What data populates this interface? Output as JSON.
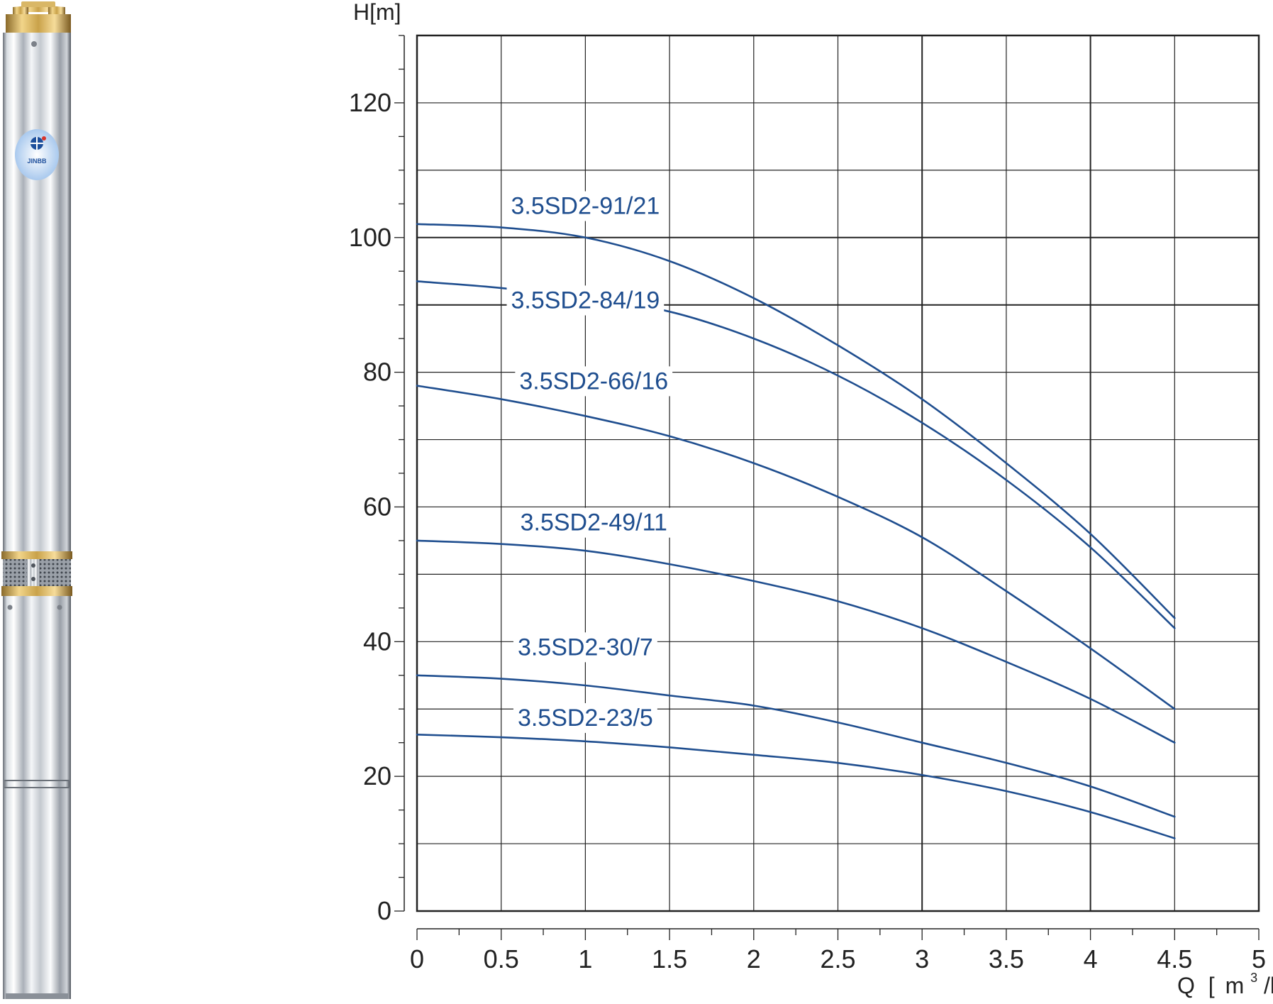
{
  "product": {
    "logo_text": "JINBB",
    "colors": {
      "steel_light": "#f4f6f8",
      "steel_dark": "#5a6068",
      "brass": "#c9a24a",
      "logo_blue": "#1d4f9c"
    }
  },
  "chart_data": {
    "type": "line",
    "ylabel": "H[m]",
    "xlabel_prefix": "Q",
    "xlabel_unit_left": "[",
    "xlabel_unit": "m",
    "xlabel_unit_sup": "3",
    "xlabel_unit_tail": "/h",
    "xlabel_unit_right": "]",
    "xlim": [
      0,
      5
    ],
    "ylim": [
      0,
      130
    ],
    "x_ticks": [
      "0",
      "0.5",
      "1",
      "1.5",
      "2",
      "2.5",
      "3",
      "3.5",
      "4",
      "4.5",
      "5"
    ],
    "y_ticks": [
      "0",
      "20",
      "40",
      "60",
      "80",
      "100",
      "120"
    ],
    "grid": true,
    "colors": {
      "curve": "#1f4e8f",
      "grid": "#222222",
      "text": "#222222"
    },
    "series": [
      {
        "name": "3.5SD2-91/21",
        "x": [
          0,
          0.5,
          1,
          1.5,
          2,
          2.5,
          3,
          3.5,
          4,
          4.5
        ],
        "values": [
          102,
          101.5,
          100,
          96.5,
          91,
          84,
          76,
          66.5,
          56,
          43.5
        ]
      },
      {
        "name": "3.5SD2-84/19",
        "x": [
          0,
          0.5,
          1,
          1.5,
          2,
          2.5,
          3,
          3.5,
          4,
          4.5
        ],
        "values": [
          93.5,
          92.5,
          91,
          89,
          85,
          79.5,
          72.5,
          64,
          54,
          42
        ]
      },
      {
        "name": "3.5SD2-66/16",
        "x": [
          0,
          0.5,
          1,
          1.5,
          2,
          2.5,
          3,
          3.5,
          4,
          4.5
        ],
        "values": [
          78,
          76,
          73.5,
          70.5,
          66.5,
          61.5,
          55.5,
          47.5,
          39,
          30
        ]
      },
      {
        "name": "3.5SD2-49/11",
        "x": [
          0,
          0.5,
          1,
          1.5,
          2,
          2.5,
          3,
          3.5,
          4,
          4.5
        ],
        "values": [
          55,
          54.5,
          53.5,
          51.5,
          49,
          46,
          42,
          37,
          31.5,
          25
        ]
      },
      {
        "name": "3.5SD2-30/7",
        "x": [
          0,
          0.5,
          1,
          1.5,
          2,
          2.5,
          3,
          3.5,
          4,
          4.5
        ],
        "values": [
          35,
          34.5,
          33.5,
          32,
          30.5,
          28,
          25,
          22,
          18.5,
          14
        ]
      },
      {
        "name": "3.5SD2-23/5",
        "x": [
          0,
          0.5,
          1,
          1.5,
          2,
          2.5,
          3,
          3.5,
          4,
          4.5
        ],
        "values": [
          26.2,
          25.8,
          25.2,
          24.3,
          23.2,
          22,
          20.2,
          17.8,
          14.7,
          10.8
        ]
      }
    ],
    "labels": [
      {
        "text": "3.5SD2-91/21",
        "x": 1.0,
        "y": 103.5
      },
      {
        "text": "3.5SD2-84/19",
        "x": 1.0,
        "y": 89.5
      },
      {
        "text": "3.5SD2-66/16",
        "x": 1.05,
        "y": 77.5
      },
      {
        "text": "3.5SD2-49/11",
        "x": 1.05,
        "y": 56.5
      },
      {
        "text": "3.5SD2-30/7",
        "x": 1.0,
        "y": 38
      },
      {
        "text": "3.5SD2-23/5",
        "x": 1.0,
        "y": 27.5
      }
    ]
  }
}
